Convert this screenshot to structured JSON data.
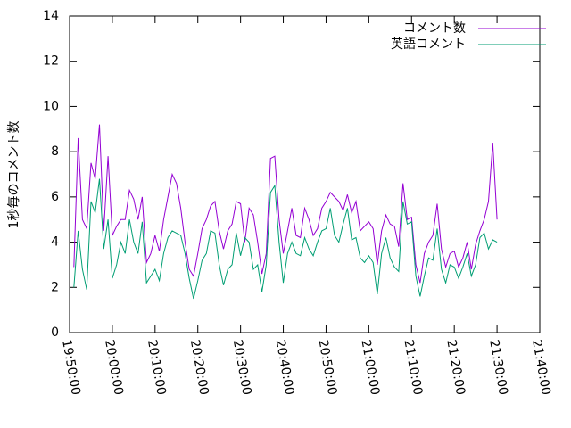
{
  "chart_data": {
    "type": "line",
    "y_label": "1秒毎のコメント数",
    "x": [
      "19:51:00",
      "19:52:00",
      "19:53:00",
      "19:54:00",
      "19:55:00",
      "19:56:00",
      "19:57:00",
      "19:58:00",
      "19:59:00",
      "20:00:00",
      "20:01:00",
      "20:02:00",
      "20:03:00",
      "20:04:00",
      "20:05:00",
      "20:06:00",
      "20:07:00",
      "20:08:00",
      "20:09:00",
      "20:10:00",
      "20:11:00",
      "20:12:00",
      "20:13:00",
      "20:14:00",
      "20:15:00",
      "20:16:00",
      "20:17:00",
      "20:18:00",
      "20:19:00",
      "20:20:00",
      "20:21:00",
      "20:22:00",
      "20:23:00",
      "20:24:00",
      "20:25:00",
      "20:26:00",
      "20:27:00",
      "20:28:00",
      "20:29:00",
      "20:30:00",
      "20:31:00",
      "20:32:00",
      "20:33:00",
      "20:34:00",
      "20:35:00",
      "20:36:00",
      "20:37:00",
      "20:38:00",
      "20:39:00",
      "20:40:00",
      "20:41:00",
      "20:42:00",
      "20:43:00",
      "20:44:00",
      "20:45:00",
      "20:46:00",
      "20:47:00",
      "20:48:00",
      "20:49:00",
      "20:50:00",
      "20:51:00",
      "20:52:00",
      "20:53:00",
      "20:54:00",
      "20:55:00",
      "20:56:00",
      "20:57:00",
      "20:58:00",
      "20:59:00",
      "21:00:00",
      "21:01:00",
      "21:02:00",
      "21:03:00",
      "21:04:00",
      "21:05:00",
      "21:06:00",
      "21:07:00",
      "21:08:00",
      "21:09:00",
      "21:10:00",
      "21:11:00",
      "21:12:00",
      "21:13:00",
      "21:14:00",
      "21:15:00",
      "21:16:00",
      "21:17:00",
      "21:18:00",
      "21:19:00",
      "21:20:00",
      "21:21:00",
      "21:22:00",
      "21:23:00",
      "21:24:00",
      "21:25:00",
      "21:26:00",
      "21:27:00",
      "21:28:00",
      "21:29:00",
      "21:30:00"
    ],
    "series": [
      {
        "name": "コメント数",
        "color": "#9400d3",
        "values": [
          2.9,
          8.6,
          5.0,
          4.6,
          7.5,
          6.8,
          9.2,
          4.5,
          7.8,
          4.3,
          4.7,
          5.0,
          5.0,
          6.3,
          5.9,
          5.0,
          6.0,
          3.1,
          3.5,
          4.3,
          3.6,
          5.0,
          6.0,
          7.0,
          6.6,
          5.5,
          4.0,
          2.8,
          2.5,
          3.5,
          4.6,
          5.0,
          5.6,
          5.8,
          4.5,
          3.7,
          4.5,
          4.8,
          5.8,
          5.7,
          4.0,
          5.5,
          5.2,
          4.0,
          2.6,
          3.5,
          7.7,
          7.8,
          5.0,
          3.5,
          4.5,
          5.5,
          4.3,
          4.2,
          5.5,
          5.0,
          4.3,
          4.6,
          5.5,
          5.8,
          6.2,
          6.0,
          5.8,
          5.4,
          6.1,
          5.3,
          5.8,
          4.5,
          4.7,
          4.9,
          4.6,
          3.0,
          4.5,
          5.2,
          4.8,
          4.7,
          3.8,
          6.6,
          5.0,
          5.1,
          3.0,
          2.2,
          3.5,
          4.0,
          4.3,
          5.7,
          3.7,
          2.9,
          3.5,
          3.6,
          2.9,
          3.3,
          4.0,
          2.8,
          3.9,
          4.5,
          5.0,
          5.8,
          8.4,
          5.0
        ]
      },
      {
        "name": "英語コメント",
        "color": "#009e73",
        "values": [
          2.0,
          4.5,
          2.8,
          1.9,
          5.8,
          5.3,
          6.8,
          3.7,
          5.0,
          2.4,
          3.0,
          4.0,
          3.5,
          5.0,
          4.0,
          3.5,
          4.9,
          2.2,
          2.5,
          2.8,
          2.3,
          3.5,
          4.2,
          4.5,
          4.4,
          4.3,
          3.5,
          2.4,
          1.5,
          2.3,
          3.2,
          3.5,
          4.5,
          4.4,
          3.0,
          2.1,
          2.8,
          3.0,
          4.4,
          3.4,
          4.2,
          4.0,
          2.8,
          3.0,
          1.8,
          3.0,
          6.2,
          6.5,
          4.0,
          2.2,
          3.5,
          4.0,
          3.5,
          3.4,
          4.2,
          3.7,
          3.4,
          4.0,
          4.5,
          4.6,
          5.5,
          4.3,
          4.0,
          4.8,
          5.5,
          4.1,
          4.2,
          3.3,
          3.1,
          3.4,
          3.1,
          1.7,
          3.5,
          4.2,
          3.3,
          2.9,
          2.7,
          5.8,
          4.8,
          4.9,
          2.5,
          1.6,
          2.5,
          3.3,
          3.2,
          4.6,
          2.8,
          2.2,
          3.0,
          2.9,
          2.4,
          2.9,
          3.5,
          2.5,
          3.0,
          4.2,
          4.4,
          3.7,
          4.1,
          4.0
        ]
      }
    ],
    "xlim": [
      "19:50:00",
      "21:40:00"
    ],
    "xticks": [
      "19:50:00",
      "20:00:00",
      "20:10:00",
      "20:20:00",
      "20:30:00",
      "20:40:00",
      "20:50:00",
      "21:00:00",
      "21:10:00",
      "21:20:00",
      "21:30:00",
      "21:40:00"
    ],
    "ylim": [
      0,
      14
    ],
    "yticks": [
      0,
      2,
      4,
      6,
      8,
      10,
      12,
      14
    ],
    "legend": "top-right",
    "grid": false
  }
}
